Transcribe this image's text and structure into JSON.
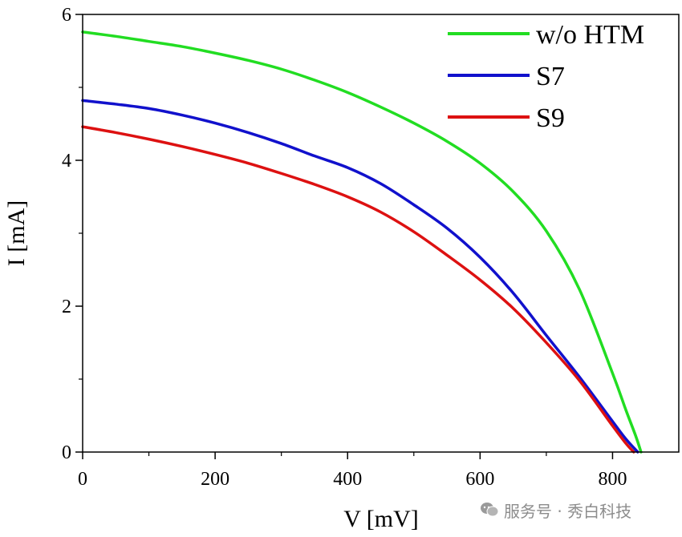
{
  "chart_data": {
    "type": "line",
    "title": "",
    "xlabel": "V [mV]",
    "ylabel": "I [mA]",
    "xlim": [
      0,
      900
    ],
    "ylim": [
      0,
      6
    ],
    "xticks": [
      0,
      200,
      400,
      600,
      800
    ],
    "yticks": [
      0,
      2,
      4,
      6
    ],
    "xtick_labels": [
      "0",
      "200",
      "400",
      "600",
      "800"
    ],
    "ytick_labels": [
      "0",
      "2",
      "4",
      "6"
    ],
    "grid": false,
    "legend_position": "top-right",
    "series": [
      {
        "name": "w/o HTM",
        "color": "#22dd22",
        "x": [
          0,
          50,
          100,
          150,
          200,
          250,
          300,
          350,
          400,
          450,
          500,
          550,
          600,
          650,
          700,
          750,
          800,
          820,
          835,
          843
        ],
        "y": [
          5.76,
          5.7,
          5.63,
          5.56,
          5.47,
          5.37,
          5.25,
          5.1,
          4.93,
          4.73,
          4.51,
          4.26,
          3.96,
          3.57,
          3.03,
          2.23,
          1.08,
          0.58,
          0.22,
          0.0
        ]
      },
      {
        "name": "S7",
        "color": "#1111cc",
        "x": [
          0,
          50,
          100,
          150,
          200,
          250,
          300,
          350,
          400,
          450,
          500,
          550,
          600,
          650,
          700,
          750,
          800,
          820,
          838
        ],
        "y": [
          4.82,
          4.77,
          4.71,
          4.62,
          4.51,
          4.38,
          4.23,
          4.06,
          3.9,
          3.68,
          3.39,
          3.07,
          2.67,
          2.18,
          1.6,
          1.03,
          0.42,
          0.18,
          0.0
        ]
      },
      {
        "name": "S9",
        "color": "#dd1111",
        "x": [
          0,
          50,
          100,
          150,
          200,
          250,
          300,
          350,
          400,
          450,
          500,
          550,
          600,
          650,
          700,
          750,
          800,
          820,
          832
        ],
        "y": [
          4.46,
          4.38,
          4.29,
          4.19,
          4.08,
          3.96,
          3.82,
          3.67,
          3.5,
          3.29,
          3.02,
          2.7,
          2.36,
          1.97,
          1.5,
          0.98,
          0.36,
          0.12,
          0.0
        ]
      }
    ]
  },
  "watermark": {
    "text": "服务号 · 秀白科技"
  }
}
